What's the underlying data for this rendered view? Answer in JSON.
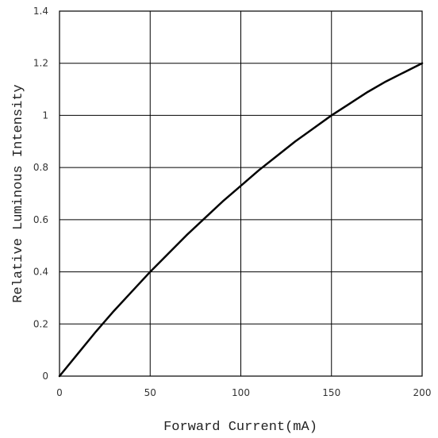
{
  "chart_data": {
    "type": "line",
    "title": "",
    "xlabel": "Forward Current(mA)",
    "ylabel": "Relative Luminous Intensity",
    "xlim": [
      0,
      200
    ],
    "ylim": [
      0,
      1.4
    ],
    "x_ticks": [
      "0",
      "50",
      "100",
      "150",
      "200"
    ],
    "y_ticks": [
      "0",
      "0.2",
      "0.4",
      "0.6",
      "0.8",
      "1",
      "1.2",
      "1.4"
    ],
    "x_tick_values": [
      0,
      50,
      100,
      150,
      200
    ],
    "y_tick_values": [
      0,
      0.2,
      0.4,
      0.6,
      0.8,
      1.0,
      1.2,
      1.4
    ],
    "grid": true,
    "line_color": "#000000",
    "series": [
      {
        "x": [
          0,
          10,
          20,
          30,
          40,
          50,
          60,
          70,
          80,
          90,
          100,
          110,
          120,
          130,
          140,
          150,
          160,
          170,
          180,
          190,
          200
        ],
        "y": [
          0,
          0.085,
          0.17,
          0.25,
          0.325,
          0.4,
          0.47,
          0.54,
          0.605,
          0.67,
          0.73,
          0.79,
          0.845,
          0.9,
          0.95,
          1.0,
          1.045,
          1.09,
          1.13,
          1.165,
          1.2
        ]
      }
    ]
  }
}
